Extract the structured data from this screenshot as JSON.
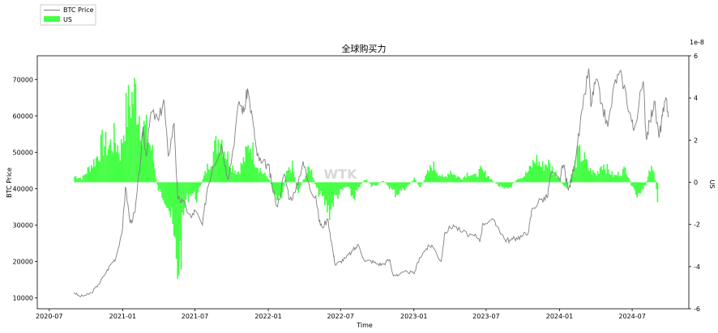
{
  "chart_data": {
    "type": "line+bar",
    "title": "全球购买力",
    "xlabel": "Time",
    "ylabel_left": "BTC Price",
    "ylabel_right": "US",
    "right_scale_note": "1e-8",
    "watermark": "WTK",
    "legend": [
      {
        "name": "BTC Price",
        "color": "#7f7f7f",
        "style": "line"
      },
      {
        "name": "US",
        "color": "#44ff44",
        "style": "patch"
      }
    ],
    "x_ticks": [
      "2020-07",
      "2021-01",
      "2021-07",
      "2022-01",
      "2022-07",
      "2023-01",
      "2023-07",
      "2024-01",
      "2024-07"
    ],
    "x_range": [
      "2020-06-01",
      "2024-11-20"
    ],
    "y_left_ticks": [
      10000,
      20000,
      30000,
      40000,
      50000,
      60000,
      70000
    ],
    "y_left_range": [
      7000,
      76500
    ],
    "y_right_ticks": [
      -6,
      -4,
      -2,
      0,
      2,
      4,
      6
    ],
    "y_right_range": [
      -6,
      6
    ],
    "colors": {
      "btc_line": "#7f7f7f",
      "us_fill": "#44ff44"
    },
    "btc_price": {
      "dates": [
        "2020-09-01",
        "2020-09-15",
        "2020-10-01",
        "2020-10-15",
        "2020-11-01",
        "2020-11-15",
        "2020-12-01",
        "2020-12-15",
        "2021-01-01",
        "2021-01-08",
        "2021-01-20",
        "2021-02-01",
        "2021-02-15",
        "2021-02-21",
        "2021-03-01",
        "2021-03-13",
        "2021-04-01",
        "2021-04-14",
        "2021-04-25",
        "2021-05-10",
        "2021-05-19",
        "2021-06-01",
        "2021-06-22",
        "2021-07-01",
        "2021-07-20",
        "2021-08-01",
        "2021-08-15",
        "2021-09-06",
        "2021-09-21",
        "2021-10-01",
        "2021-10-20",
        "2021-11-01",
        "2021-11-10",
        "2021-11-25",
        "2021-12-04",
        "2021-12-15",
        "2022-01-01",
        "2022-01-10",
        "2022-01-24",
        "2022-02-10",
        "2022-02-24",
        "2022-03-10",
        "2022-03-29",
        "2022-04-15",
        "2022-04-30",
        "2022-05-09",
        "2022-05-15",
        "2022-05-31",
        "2022-06-13",
        "2022-06-18",
        "2022-07-01",
        "2022-07-15",
        "2022-08-01",
        "2022-08-15",
        "2022-09-01",
        "2022-09-15",
        "2022-10-01",
        "2022-10-15",
        "2022-11-01",
        "2022-11-09",
        "2022-11-21",
        "2022-12-15",
        "2023-01-01",
        "2023-01-15",
        "2023-02-01",
        "2023-02-15",
        "2023-03-10",
        "2023-03-20",
        "2023-04-10",
        "2023-05-01",
        "2023-06-01",
        "2023-06-15",
        "2023-06-23",
        "2023-07-13",
        "2023-08-01",
        "2023-08-17",
        "2023-09-01",
        "2023-09-15",
        "2023-10-01",
        "2023-10-16",
        "2023-10-24",
        "2023-11-15",
        "2023-12-01",
        "2023-12-10",
        "2024-01-01",
        "2024-01-11",
        "2024-01-23",
        "2024-02-01",
        "2024-02-15",
        "2024-02-28",
        "2024-03-14",
        "2024-03-20",
        "2024-04-01",
        "2024-04-15",
        "2024-05-01",
        "2024-05-20",
        "2024-06-05",
        "2024-06-25",
        "2024-07-05",
        "2024-07-29",
        "2024-08-05",
        "2024-08-15",
        "2024-08-25",
        "2024-09-06",
        "2024-09-15",
        "2024-09-25",
        "2024-09-30"
      ],
      "values": [
        11500,
        10400,
        10700,
        11400,
        13600,
        16000,
        19000,
        21000,
        29300,
        40500,
        30500,
        33500,
        48000,
        57000,
        49000,
        61000,
        58700,
        64500,
        49000,
        58000,
        37000,
        36500,
        32000,
        34000,
        30000,
        40000,
        46000,
        52000,
        43000,
        48000,
        64000,
        61000,
        67500,
        57000,
        49000,
        47000,
        46500,
        41000,
        35000,
        44000,
        37000,
        39000,
        47500,
        40000,
        38000,
        31000,
        29500,
        31500,
        22000,
        19000,
        20000,
        21000,
        23000,
        24500,
        20000,
        20200,
        19300,
        19200,
        20500,
        16500,
        16000,
        17300,
        16600,
        21000,
        23500,
        24500,
        20000,
        28000,
        30000,
        28000,
        27000,
        25500,
        30500,
        31500,
        29300,
        26000,
        25800,
        26500,
        27000,
        28500,
        34500,
        37000,
        37500,
        44000,
        42500,
        46500,
        39500,
        43000,
        52000,
        62000,
        73000,
        62500,
        70000,
        63500,
        57000,
        70000,
        71000,
        61000,
        56000,
        69500,
        54000,
        58500,
        64000,
        54000,
        60000,
        64500,
        60000
      ]
    },
    "us_series": {
      "dates": [
        "2020-09-01",
        "2020-09-20",
        "2020-10-10",
        "2020-10-25",
        "2020-11-10",
        "2020-11-25",
        "2020-12-10",
        "2020-12-25",
        "2021-01-05",
        "2021-01-20",
        "2021-02-01",
        "2021-02-15",
        "2021-03-01",
        "2021-03-15",
        "2021-03-28",
        "2021-04-05",
        "2021-04-15",
        "2021-04-25",
        "2021-05-05",
        "2021-05-15",
        "2021-05-25",
        "2021-06-05",
        "2021-06-20",
        "2021-07-05",
        "2021-07-20",
        "2021-08-05",
        "2021-08-20",
        "2021-09-01",
        "2021-09-15",
        "2021-10-01",
        "2021-10-15",
        "2021-11-01",
        "2021-11-15",
        "2021-12-01",
        "2021-12-15",
        "2022-01-01",
        "2022-01-15",
        "2022-02-01",
        "2022-02-15",
        "2022-03-01",
        "2022-03-15",
        "2022-04-01",
        "2022-04-15",
        "2022-05-01",
        "2022-05-15",
        "2022-06-01",
        "2022-06-15",
        "2022-07-01",
        "2022-07-15",
        "2022-08-01",
        "2022-08-15",
        "2022-09-01",
        "2022-09-15",
        "2022-10-01",
        "2022-10-15",
        "2022-11-01",
        "2022-11-15",
        "2022-12-01",
        "2022-12-15",
        "2023-01-01",
        "2023-01-15",
        "2023-02-01",
        "2023-02-15",
        "2023-03-01",
        "2023-03-15",
        "2023-04-01",
        "2023-04-15",
        "2023-05-01",
        "2023-05-15",
        "2023-06-01",
        "2023-06-15",
        "2023-07-01",
        "2023-07-15",
        "2023-08-01",
        "2023-08-15",
        "2023-09-01",
        "2023-09-15",
        "2023-10-01",
        "2023-10-15",
        "2023-11-01",
        "2023-11-15",
        "2023-12-01",
        "2023-12-15",
        "2024-01-01",
        "2024-01-15",
        "2024-02-01",
        "2024-02-15",
        "2024-03-01",
        "2024-03-15",
        "2024-04-01",
        "2024-04-15",
        "2024-05-01",
        "2024-05-15",
        "2024-06-01",
        "2024-06-15",
        "2024-07-01",
        "2024-07-15",
        "2024-08-01",
        "2024-08-15",
        "2024-08-25",
        "2024-09-01"
      ],
      "values": [
        0.3,
        0.2,
        0.8,
        1.2,
        2.0,
        1.8,
        2.2,
        1.5,
        3.2,
        4.2,
        4.5,
        3.0,
        2.5,
        1.5,
        -0.3,
        -0.6,
        -0.8,
        -1.2,
        -2.5,
        -4.5,
        -3.5,
        -1.0,
        -0.5,
        -0.8,
        0.2,
        1.0,
        1.8,
        2.5,
        1.5,
        0.8,
        0.5,
        1.2,
        2.0,
        1.0,
        0.5,
        0.2,
        -0.6,
        -0.8,
        0.5,
        0.8,
        -0.5,
        0.3,
        0.8,
        -0.4,
        -0.8,
        -1.5,
        -0.8,
        -0.5,
        -0.2,
        -0.8,
        -0.3,
        0.2,
        -0.2,
        -0.1,
        0.1,
        -0.3,
        -0.6,
        -0.4,
        -0.2,
        0.2,
        -0.3,
        0.4,
        0.9,
        0.5,
        0.2,
        0.6,
        0.3,
        0.2,
        0.5,
        0.3,
        0.6,
        0.4,
        0.1,
        -0.2,
        -0.4,
        -0.2,
        0.2,
        0.3,
        0.6,
        1.2,
        0.8,
        1.0,
        0.6,
        0.2,
        -0.4,
        0.5,
        1.5,
        1.2,
        0.6,
        0.4,
        1.0,
        0.6,
        0.3,
        0.5,
        0.7,
        -0.4,
        -0.8,
        -0.2,
        0.7,
        0.4,
        -1.2
      ]
    }
  }
}
